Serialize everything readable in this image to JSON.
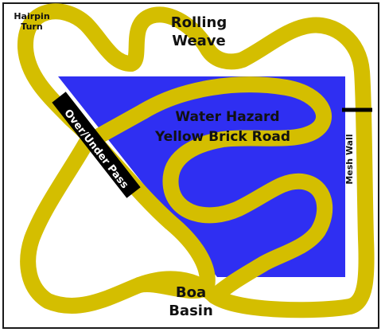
{
  "colors": {
    "track": "#d4be00",
    "water": "#2f2ff2",
    "frame": "#1a1a1a",
    "pass_band": "#000000",
    "text": "#111111"
  },
  "labels": {
    "hairpin_line1": "Hairpin",
    "hairpin_line2": "Turn",
    "rolling_line1": "Rolling",
    "rolling_line2": "Weave",
    "water_hazard": "Water Hazard",
    "yellow_brick_road": "Yellow Brick Road",
    "over_under_pass": "Over/Under Pass",
    "mesh_wall": "Mesh Wall",
    "boa_line1": "Boa",
    "boa_line2": "Basin"
  }
}
